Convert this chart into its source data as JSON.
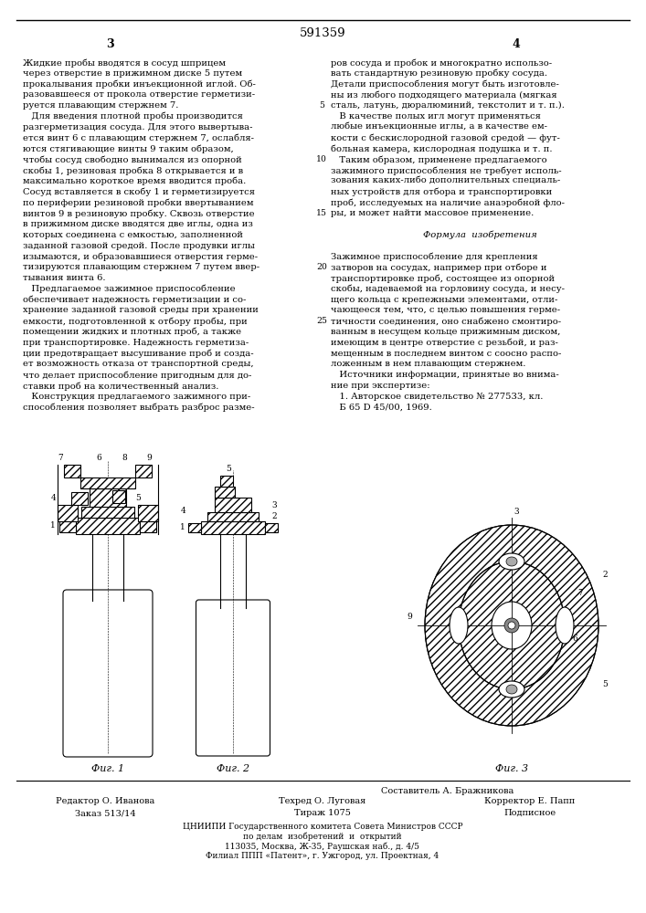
{
  "patent_number": "591359",
  "page_left": "3",
  "page_right": "4",
  "bg_color": "#ffffff",
  "text_color": "#000000",
  "fig_captions": [
    "Фиг. 1",
    "Фиг. 2",
    "Фиг. 3"
  ],
  "footer_composer": "Составитель А. Бражникова",
  "footer_left_label": "Редактор О. Иванова",
  "footer_left_val": "Заказ 513/14",
  "footer_mid_label": "Техред О. Луговая",
  "footer_mid_val": "Тираж 1075",
  "footer_right_label": "Корректор Е. Папп",
  "footer_right_val": "Подписное",
  "institution_lines": [
    "ЦНИИПИ Государственного комитета Совета Министров СССР",
    "по делам  изобретений  и  открытий",
    "113035, Москва, Ж-35, Раушская наб., д. 4/5",
    "Филиал ППП «Патент», г. Ужгород, ул. Проектная, 4"
  ],
  "col_left_text": [
    "Жидкие пробы вводятся в сосуд шприцем",
    "через отверстие в прижимном диске 5 путем",
    "прокалывания пробки инъекционной иглой. Об-",
    "разовавшееся от прокола отверстие герметизи-",
    "руется плавающим стержнем 7.",
    "   Для введения плотной пробы производится",
    "разгерметизация сосуда. Для этого вывертыва-",
    "ется винт 6 с плавающим стержнем 7, ослабля-",
    "ются стягивающие винты 9 таким образом,",
    "чтобы сосуд свободно вынимался из опорной",
    "скобы 1, резиновая пробка 8 открывается и в",
    "максимально короткое время вводится проба.",
    "Сосуд вставляется в скобу 1 и герметизируется",
    "по периферии резиновой пробки ввертыванием",
    "винтов 9 в резиновую пробку. Сквозь отверстие",
    "в прижимном диске вводятся две иглы, одна из",
    "которых соединена с емкостью, заполненной",
    "заданной газовой средой. После продувки иглы",
    "изымаются, и образовавшиеся отверстия герме-",
    "тизируются плавающим стержнем 7 путем ввер-",
    "тывания винта 6.",
    "   Предлагаемое зажимное приспособление",
    "обеспечивает надежность герметизации и со-",
    "хранение заданной газовой среды при хранении",
    "емкости, подготовленной к отбору пробы, при",
    "помещении жидких и плотных проб, а также",
    "при транспортировке. Надежность герметиза-",
    "ции предотвращает высушивание проб и созда-",
    "ет возможность отказа от транспортной среды,",
    "что делает приспособление пригодным для до-",
    "ставки проб на количественный анализ.",
    "   Конструкция предлагаемого зажимного при-",
    "способления позволяет выбрать разброс разме-"
  ],
  "col_right_text": [
    "ров сосуда и пробок и многократно использо-",
    "вать стандартную резиновую пробку сосуда.",
    "Детали приспособления могут быть изготовле-",
    "ны из любого подходящего материала (мягкая",
    "сталь, латунь, дюралюминий, текстолит и т. п.).",
    "   В качестве полых игл могут применяться",
    "любые инъекционные иглы, а в качестве ем-",
    "кости с бескислородной газовой средой — фут-",
    "больная камера, кислородная подушка и т. п.",
    "   Таким образом, применене предлагаемого",
    "зажимного приспособления не требует исполь-",
    "зования каких-либо дополнительных специаль-",
    "ных устройств для отбора и транспортировки",
    "проб, исследуемых на наличие анаэробной фло-",
    "ры, и может найти массовое применение.",
    "",
    "Формула  изобретения",
    "",
    "Зажимное приспособление для крепления",
    "затворов на сосудах, например при отборе и",
    "транспортировке проб, состоящее из опорной",
    "скобы, надеваемой на горловину сосуда, и несу-",
    "щего кольца с крепежными элементами, отли-",
    "чающееся тем, что, с целью повышения герме-",
    "тичности соединения, оно снабжено смонтиро-",
    "ванным в несущем кольце прижимным диском,",
    "имеющим в центре отверстие с резьбой, и раз-",
    "мещенным в последнем винтом с соосно распо-",
    "ложенным в нем плавающим стержнем.",
    "   Источники информации, принятые во внима-",
    "ние при экспертизе:",
    "   1. Авторское свидетельство № 277533, кл.",
    "   Б 65 D 45/00, 1969."
  ]
}
